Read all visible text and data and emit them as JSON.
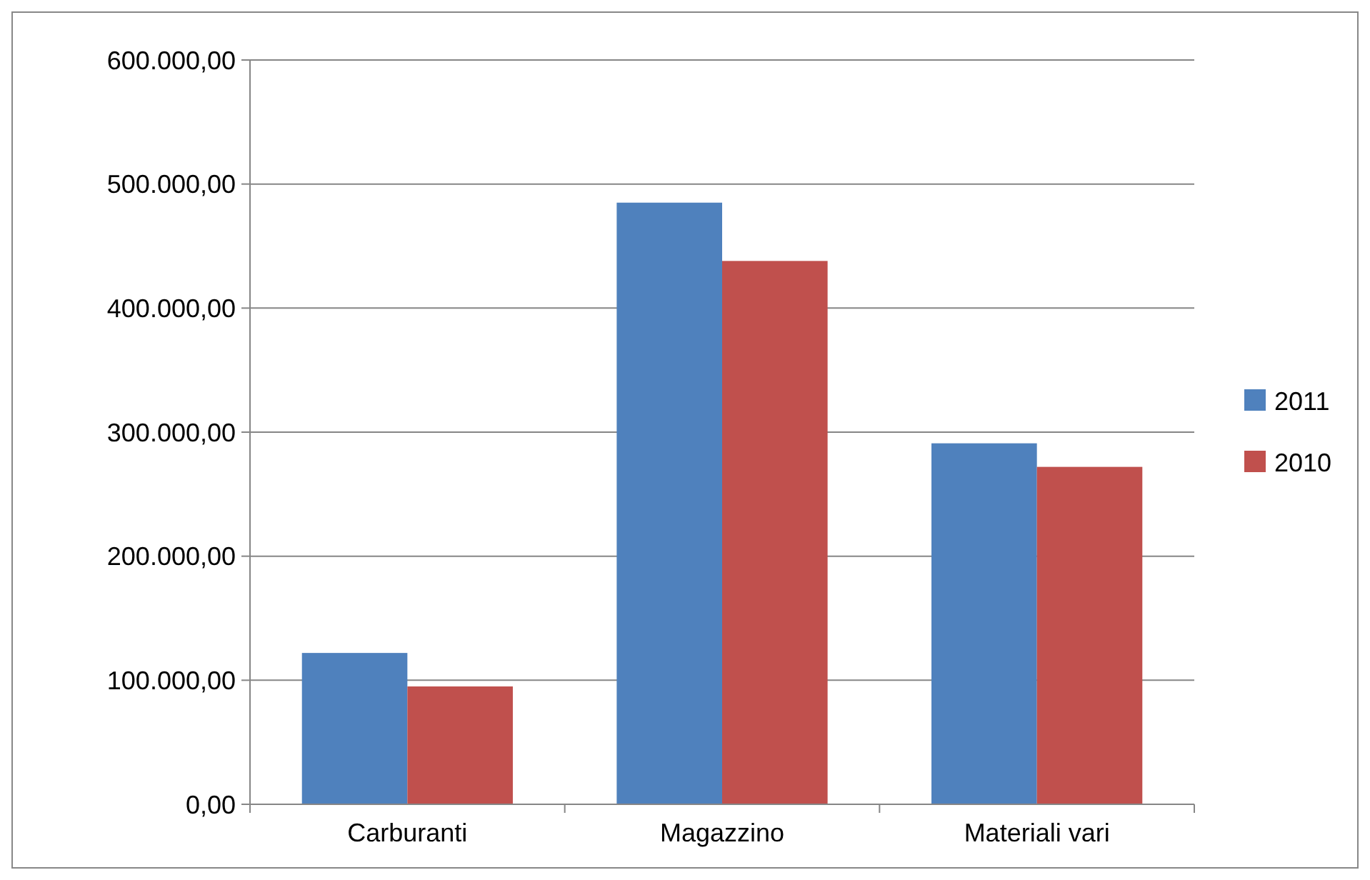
{
  "chart_data": {
    "type": "bar",
    "categories": [
      "Carburanti",
      "Magazzino",
      "Materiali vari"
    ],
    "series": [
      {
        "name": "2011",
        "color": "#4f81bd",
        "values": [
          122000,
          485000,
          291000
        ]
      },
      {
        "name": "2010",
        "color": "#c0504d",
        "values": [
          95000,
          438000,
          272000
        ]
      }
    ],
    "ylim": [
      0,
      600000
    ],
    "yticks": [
      {
        "value": 0,
        "label": "0,00"
      },
      {
        "value": 100000,
        "label": "100.000,00"
      },
      {
        "value": 200000,
        "label": "200.000,00"
      },
      {
        "value": 300000,
        "label": "300.000,00"
      },
      {
        "value": 400000,
        "label": "400.000,00"
      },
      {
        "value": 500000,
        "label": "500.000,00"
      },
      {
        "value": 600000,
        "label": "600.000,00"
      }
    ],
    "grid": "y",
    "legend": "right"
  }
}
